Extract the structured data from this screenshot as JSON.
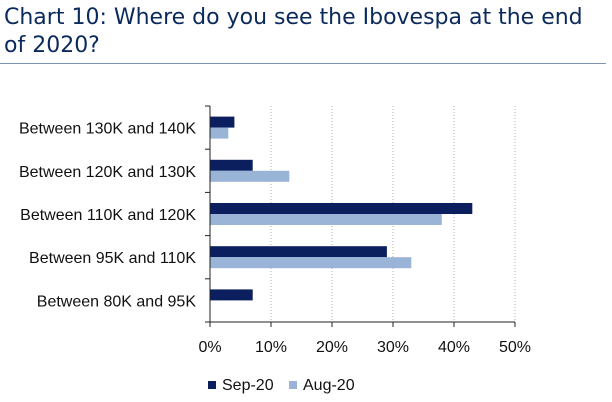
{
  "title": "Chart 10: Where do you see the Ibovespa at the end of 2020?",
  "chart_data": {
    "type": "bar",
    "orientation": "horizontal",
    "categories": [
      "Between 130K and 140K",
      "Between 120K and 130K",
      "Between 110K and 120K",
      "Between 95K and 110K",
      "Between 80K and 95K"
    ],
    "series": [
      {
        "name": "Sep-20",
        "color": "#0b1f5e",
        "values": [
          4,
          7,
          43,
          29,
          7
        ]
      },
      {
        "name": "Aug-20",
        "color": "#9ab4d8",
        "values": [
          3,
          13,
          38,
          33,
          0
        ]
      }
    ],
    "xlim": [
      0,
      50
    ],
    "xticks": [
      "0%",
      "10%",
      "20%",
      "30%",
      "40%",
      "50%"
    ],
    "gridlines": "vertical dotted",
    "legend_position": "bottom"
  }
}
